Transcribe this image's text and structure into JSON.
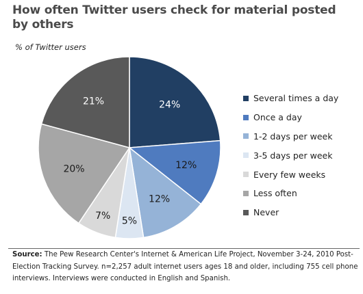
{
  "title": "How often Twitter users check for material posted by others",
  "subtitle": "% of Twitter users",
  "chart_data": {
    "type": "pie",
    "title": "How often Twitter users check for material posted by others",
    "subtitle": "% of Twitter users",
    "legend_position": "right",
    "slices": [
      {
        "label": "Several times a day",
        "value": 24,
        "value_label": "24%",
        "color": "#213f63",
        "label_color": "#ffffff"
      },
      {
        "label": "Once a day",
        "value": 12,
        "value_label": "12%",
        "color": "#4f7bbf",
        "label_color": "#1a1a1a"
      },
      {
        "label": "1-2 days per week",
        "value": 12,
        "value_label": "12%",
        "color": "#95b3d7",
        "label_color": "#1a1a1a"
      },
      {
        "label": "3-5 days per week",
        "value": 5,
        "value_label": "5%",
        "color": "#dce6f2",
        "label_color": "#1a1a1a"
      },
      {
        "label": "Every few weeks",
        "value": 7,
        "value_label": "7%",
        "color": "#d9d9d9",
        "label_color": "#1a1a1a"
      },
      {
        "label": "Less often",
        "value": 20,
        "value_label": "20%",
        "color": "#a6a6a6",
        "label_color": "#1a1a1a"
      },
      {
        "label": "Never",
        "value": 21,
        "value_label": "21%",
        "color": "#595959",
        "label_color": "#ffffff"
      }
    ]
  },
  "source": {
    "label": "Source:",
    "text": "The Pew Research Center's Internet & American Life Project, November 3-24, 2010 Post-Election Tracking Survey. n=2,257 adult internet users ages 18 and older, including 755 cell phone interviews. Interviews were conducted in English and Spanish."
  }
}
